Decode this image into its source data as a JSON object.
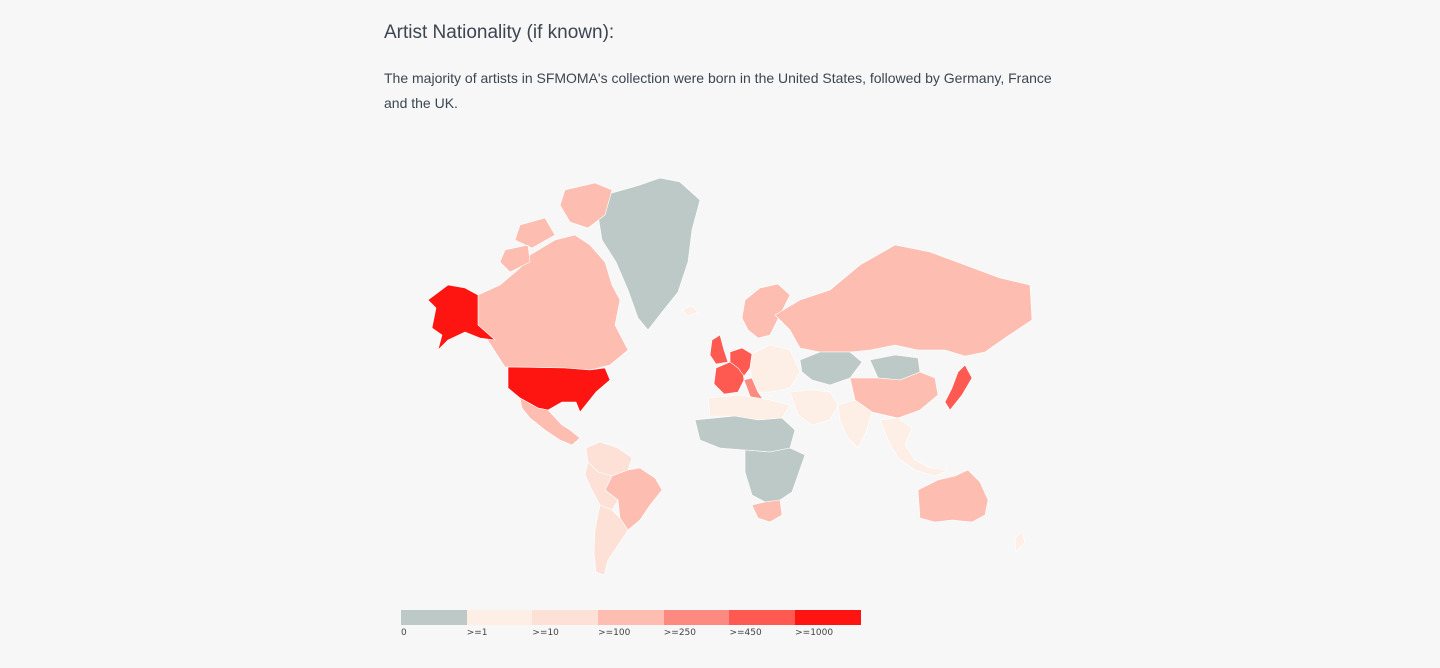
{
  "section": {
    "title": "Artist Nationality (if known):",
    "description": "The majority of artists in SFMOMA's collection were born in the United States, followed by Germany, France and the UK."
  },
  "colors": {
    "c0": "#bcc9c7",
    "c1": "#fdeee6",
    "c10": "#fde0d6",
    "c100": "#fdbdb0",
    "c250": "#fd8a80",
    "c450": "#fe5a52",
    "c1000": "#fe1410"
  },
  "legend": {
    "items": [
      {
        "label": "0",
        "color": "#bcc9c7"
      },
      {
        "label": ">=1",
        "color": "#fdeee6"
      },
      {
        "label": ">=10",
        "color": "#fde0d6"
      },
      {
        "label": ">=100",
        "color": "#fdbdb0"
      },
      {
        "label": ">=250",
        "color": "#fd8a80"
      },
      {
        "label": ">=450",
        "color": "#fe5a52"
      },
      {
        "label": ">=1000",
        "color": "#fe1410"
      }
    ]
  },
  "regions": [
    {
      "name": "united-states",
      "bin": "c1000"
    },
    {
      "name": "alaska",
      "bin": "c1000"
    },
    {
      "name": "germany",
      "bin": "c450"
    },
    {
      "name": "france",
      "bin": "c450"
    },
    {
      "name": "united-kingdom",
      "bin": "c450"
    },
    {
      "name": "japan",
      "bin": "c450"
    },
    {
      "name": "italy",
      "bin": "c250"
    },
    {
      "name": "canada",
      "bin": "c100"
    },
    {
      "name": "russia",
      "bin": "c100"
    },
    {
      "name": "china",
      "bin": "c100"
    },
    {
      "name": "australia",
      "bin": "c100"
    },
    {
      "name": "brazil",
      "bin": "c100"
    },
    {
      "name": "mexico",
      "bin": "c100"
    },
    {
      "name": "south-africa",
      "bin": "c100"
    },
    {
      "name": "greenland",
      "bin": "c0"
    },
    {
      "name": "kazakhstan",
      "bin": "c0"
    },
    {
      "name": "mongolia",
      "bin": "c0"
    },
    {
      "name": "sahara-africa",
      "bin": "c0"
    },
    {
      "name": "central-africa",
      "bin": "c0"
    },
    {
      "name": "india",
      "bin": "c1"
    },
    {
      "name": "southeast-asia",
      "bin": "c1"
    },
    {
      "name": "argentina",
      "bin": "c10"
    },
    {
      "name": "peru-bolivia",
      "bin": "c10"
    },
    {
      "name": "north-africa",
      "bin": "c1"
    },
    {
      "name": "middle-east",
      "bin": "c1"
    },
    {
      "name": "scandinavia",
      "bin": "c100"
    }
  ]
}
